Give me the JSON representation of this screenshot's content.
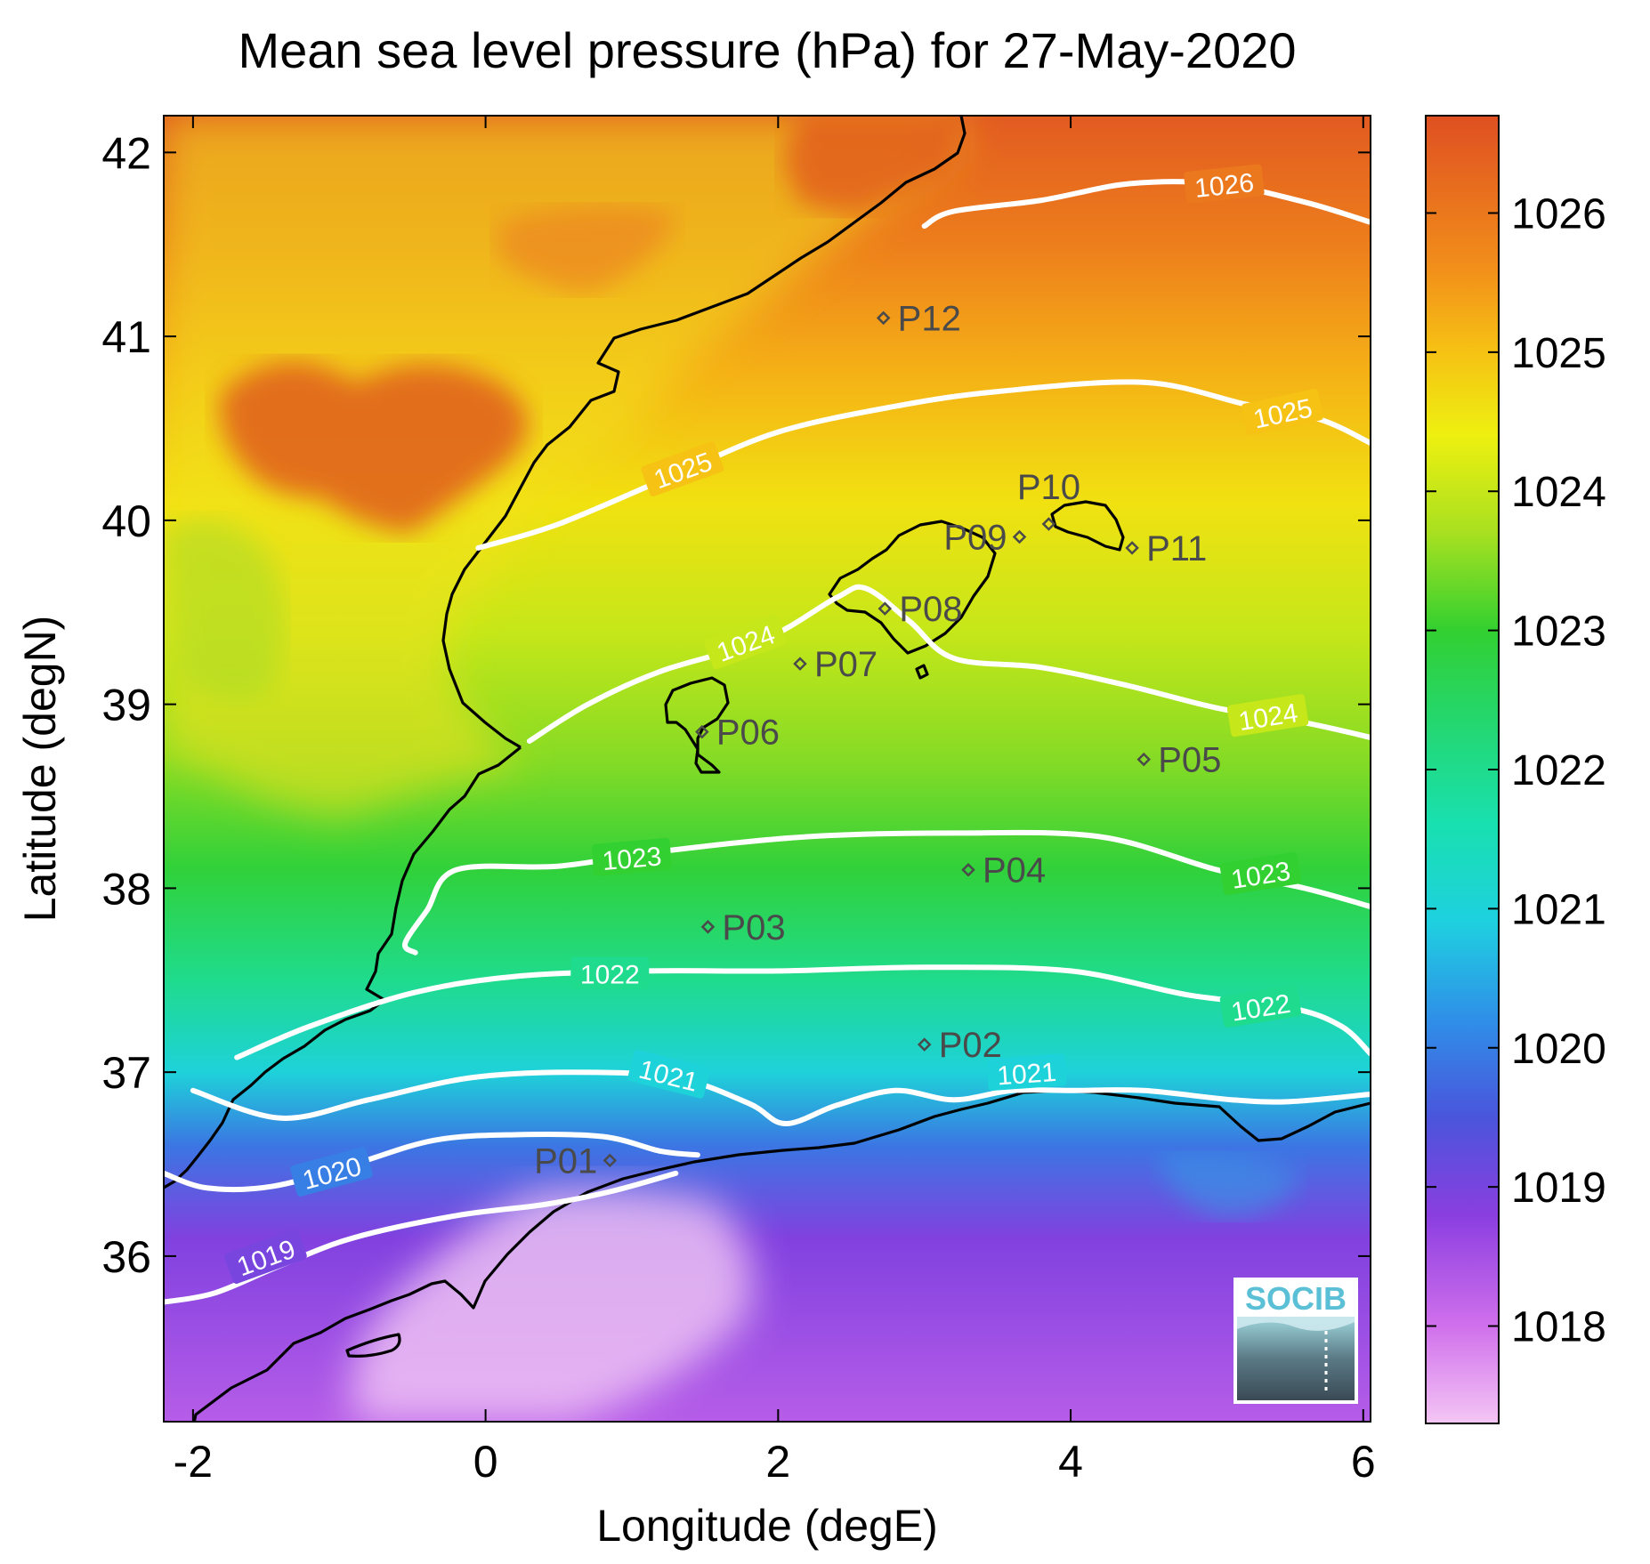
{
  "title": "Mean sea level pressure (hPa) for 27-May-2020",
  "xlabel": "Longitude (degE)",
  "ylabel": "Latitude (degN)",
  "logo_text": "SOCIB",
  "colors": {
    "land_high": "#e0501a",
    "coast": "#000000",
    "contour": "#ffffff",
    "point": "#4a4a4a",
    "logo": "#5bc0d6"
  },
  "chart_data": {
    "type": "heatmap",
    "title": "Mean sea level pressure (hPa) for 27-May-2020",
    "xlabel": "Longitude (degE)",
    "ylabel": "Latitude (degN)",
    "xlim": [
      -2.2,
      6.05
    ],
    "ylim": [
      35.1,
      42.2
    ],
    "x_ticks": [
      -2,
      0,
      2,
      4,
      6
    ],
    "y_ticks": [
      36,
      37,
      38,
      39,
      40,
      41,
      42
    ],
    "x_tick_labels": [
      "-2",
      "0",
      "2",
      "4",
      "6"
    ],
    "y_tick_labels": [
      "36",
      "37",
      "38",
      "39",
      "40",
      "41",
      "42"
    ],
    "colorbar": {
      "range": [
        1017.3,
        1026.7
      ],
      "ticks": [
        1018,
        1019,
        1020,
        1021,
        1022,
        1023,
        1024,
        1025,
        1026
      ],
      "tick_labels": [
        "1018",
        "1019",
        "1020",
        "1021",
        "1022",
        "1023",
        "1024",
        "1025",
        "1026"
      ],
      "stops": [
        {
          "v": 1017.3,
          "color": "#f4c6f4"
        },
        {
          "v": 1018.0,
          "color": "#d070ec"
        },
        {
          "v": 1018.8,
          "color": "#8a3ee0"
        },
        {
          "v": 1019.5,
          "color": "#4a55dc"
        },
        {
          "v": 1020.2,
          "color": "#2f8fe8"
        },
        {
          "v": 1020.9,
          "color": "#1fd0e0"
        },
        {
          "v": 1021.6,
          "color": "#18e0b0"
        },
        {
          "v": 1022.4,
          "color": "#25d66a"
        },
        {
          "v": 1023.0,
          "color": "#32d030"
        },
        {
          "v": 1023.7,
          "color": "#a8e020"
        },
        {
          "v": 1024.4,
          "color": "#eef010"
        },
        {
          "v": 1025.0,
          "color": "#f6c214"
        },
        {
          "v": 1025.6,
          "color": "#f28f1a"
        },
        {
          "v": 1026.7,
          "color": "#df4f22"
        }
      ]
    },
    "contours": [
      {
        "level": "1019",
        "points": [
          [
            -2.2,
            35.75
          ],
          [
            -1.85,
            35.8
          ],
          [
            -1.4,
            35.95
          ],
          [
            -0.9,
            36.1
          ],
          [
            -0.2,
            36.22
          ],
          [
            0.4,
            36.28
          ],
          [
            0.85,
            36.35
          ],
          [
            1.3,
            36.45
          ]
        ],
        "labels": [
          {
            "text": "1019",
            "lon": -1.5,
            "lat": 35.99,
            "rot": -20
          }
        ]
      },
      {
        "level": "1020",
        "points": [
          [
            -2.2,
            36.45
          ],
          [
            -1.9,
            36.37
          ],
          [
            -1.45,
            36.38
          ],
          [
            -0.9,
            36.5
          ],
          [
            -0.35,
            36.63
          ],
          [
            0.2,
            36.66
          ],
          [
            0.8,
            36.65
          ],
          [
            1.2,
            36.57
          ],
          [
            1.45,
            36.55
          ]
        ],
        "labels": [
          {
            "text": "1020",
            "lon": -1.05,
            "lat": 36.45,
            "rot": -15
          }
        ]
      },
      {
        "level": "1021",
        "points": [
          [
            -2.0,
            36.9
          ],
          [
            -1.4,
            36.75
          ],
          [
            -0.8,
            36.85
          ],
          [
            -0.1,
            36.97
          ],
          [
            0.6,
            37.0
          ],
          [
            1.3,
            36.97
          ],
          [
            1.8,
            36.83
          ],
          [
            2.05,
            36.72
          ],
          [
            2.4,
            36.82
          ],
          [
            2.8,
            36.9
          ],
          [
            3.2,
            36.85
          ],
          [
            3.6,
            36.9
          ],
          [
            4.0,
            36.9
          ],
          [
            4.5,
            36.9
          ],
          [
            5.1,
            36.85
          ],
          [
            5.5,
            36.84
          ],
          [
            6.05,
            36.88
          ]
        ],
        "labels": [
          {
            "text": "1021",
            "lon": 1.25,
            "lat": 36.98,
            "rot": 14
          },
          {
            "text": "1021",
            "lon": 3.7,
            "lat": 36.99,
            "rot": -4
          }
        ]
      },
      {
        "level": "1022",
        "points": [
          [
            -1.7,
            37.08
          ],
          [
            -1.2,
            37.25
          ],
          [
            -0.5,
            37.43
          ],
          [
            0.2,
            37.52
          ],
          [
            1.1,
            37.55
          ],
          [
            2.0,
            37.55
          ],
          [
            3.0,
            37.57
          ],
          [
            4.0,
            37.55
          ],
          [
            4.8,
            37.42
          ],
          [
            5.5,
            37.35
          ],
          [
            5.85,
            37.25
          ],
          [
            6.05,
            37.1
          ]
        ],
        "labels": [
          {
            "text": "1022",
            "lon": 0.85,
            "lat": 37.53,
            "rot": 0
          },
          {
            "text": "1022",
            "lon": 5.3,
            "lat": 37.35,
            "rot": -9
          }
        ]
      },
      {
        "level": "1023",
        "points": [
          [
            -0.48,
            37.65
          ],
          [
            -0.55,
            37.7
          ],
          [
            -0.4,
            37.88
          ],
          [
            -0.2,
            38.1
          ],
          [
            0.5,
            38.12
          ],
          [
            1.2,
            38.2
          ],
          [
            2.2,
            38.28
          ],
          [
            3.2,
            38.3
          ],
          [
            4.2,
            38.28
          ],
          [
            5.0,
            38.1
          ],
          [
            5.6,
            38.0
          ],
          [
            6.05,
            37.9
          ]
        ],
        "labels": [
          {
            "text": "1023",
            "lon": 1.0,
            "lat": 38.16,
            "rot": -5
          },
          {
            "text": "1023",
            "lon": 5.3,
            "lat": 38.07,
            "rot": -9
          }
        ]
      },
      {
        "level": "1024",
        "points": [
          [
            0.3,
            38.8
          ],
          [
            0.7,
            39.0
          ],
          [
            1.2,
            39.18
          ],
          [
            1.9,
            39.35
          ],
          [
            2.4,
            39.58
          ],
          [
            2.6,
            39.63
          ],
          [
            2.9,
            39.45
          ],
          [
            3.2,
            39.25
          ],
          [
            3.8,
            39.2
          ],
          [
            4.4,
            39.1
          ],
          [
            5.0,
            38.98
          ],
          [
            5.6,
            38.9
          ],
          [
            6.05,
            38.82
          ]
        ],
        "labels": [
          {
            "text": "1024",
            "lon": 1.78,
            "lat": 39.33,
            "rot": -20
          },
          {
            "text": "1024",
            "lon": 5.35,
            "lat": 38.93,
            "rot": -9
          }
        ]
      },
      {
        "level": "1025",
        "points": [
          [
            -0.05,
            39.85
          ],
          [
            0.5,
            39.98
          ],
          [
            1.3,
            40.25
          ],
          [
            2.0,
            40.48
          ],
          [
            2.8,
            40.62
          ],
          [
            3.5,
            40.7
          ],
          [
            4.5,
            40.75
          ],
          [
            5.2,
            40.63
          ],
          [
            5.7,
            40.55
          ],
          [
            6.05,
            40.42
          ]
        ],
        "labels": [
          {
            "text": "1025",
            "lon": 1.35,
            "lat": 40.27,
            "rot": -20
          },
          {
            "text": "1025",
            "lon": 5.45,
            "lat": 40.58,
            "rot": -12
          }
        ]
      },
      {
        "level": "1026",
        "points": [
          [
            3.0,
            41.6
          ],
          [
            3.2,
            41.68
          ],
          [
            3.8,
            41.74
          ],
          [
            4.4,
            41.83
          ],
          [
            5.0,
            41.83
          ],
          [
            5.6,
            41.73
          ],
          [
            6.05,
            41.62
          ]
        ],
        "labels": [
          {
            "text": "1026",
            "lon": 5.05,
            "lat": 41.82,
            "rot": -6
          }
        ]
      }
    ],
    "points": [
      {
        "name": "P01",
        "lon": 0.85,
        "lat": 36.52,
        "label_side": "left"
      },
      {
        "name": "P02",
        "lon": 3.0,
        "lat": 37.15,
        "label_side": "right"
      },
      {
        "name": "P03",
        "lon": 1.52,
        "lat": 37.79,
        "label_side": "right"
      },
      {
        "name": "P04",
        "lon": 3.3,
        "lat": 38.1,
        "label_side": "right"
      },
      {
        "name": "P05",
        "lon": 4.5,
        "lat": 38.7,
        "label_side": "right"
      },
      {
        "name": "P06",
        "lon": 1.48,
        "lat": 38.85,
        "label_side": "right"
      },
      {
        "name": "P07",
        "lon": 2.15,
        "lat": 39.22,
        "label_side": "right"
      },
      {
        "name": "P08",
        "lon": 2.73,
        "lat": 39.52,
        "label_side": "right"
      },
      {
        "name": "P09",
        "lon": 3.65,
        "lat": 39.91,
        "label_side": "left"
      },
      {
        "name": "P10",
        "lon": 3.85,
        "lat": 39.98,
        "label_side": "above"
      },
      {
        "name": "P11",
        "lon": 4.42,
        "lat": 39.85,
        "label_side": "right"
      },
      {
        "name": "P12",
        "lon": 2.72,
        "lat": 41.1,
        "label_side": "right"
      }
    ]
  }
}
